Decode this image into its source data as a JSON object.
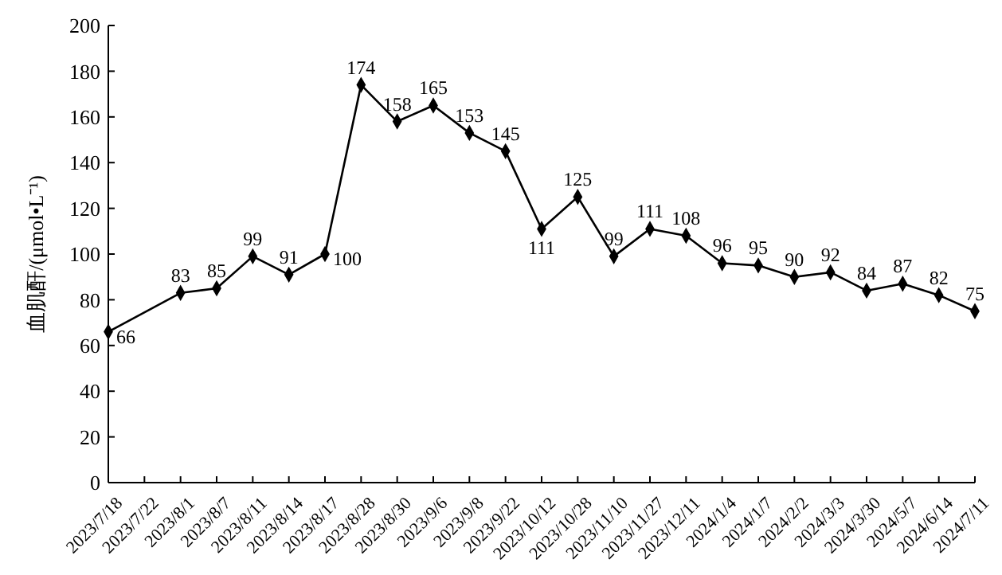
{
  "chart_data": {
    "type": "line",
    "ylabel": "血肌酐/(μmol•L⁻¹)",
    "categories": [
      "2023/7/18",
      "2023/7/22",
      "2023/8/1",
      "2023/8/7",
      "2023/8/11",
      "2023/8/14",
      "2023/8/17",
      "2023/8/28",
      "2023/8/30",
      "2023/9/6",
      "2023/9/8",
      "2023/9/22",
      "2023/10/12",
      "2023/10/28",
      "2023/11/10",
      "2023/11/27",
      "2023/12/11",
      "2024/1/4",
      "2024/1/7",
      "2024/2/2",
      "2024/3/3",
      "2024/3/30",
      "2024/5/7",
      "2024/6/14",
      "2024/7/11"
    ],
    "series": [
      {
        "color": "#000000",
        "values": [
          66,
          null,
          83,
          85,
          99,
          91,
          100,
          174,
          158,
          165,
          153,
          145,
          111,
          125,
          99,
          111,
          108,
          96,
          95,
          90,
          92,
          84,
          87,
          82,
          75
        ]
      }
    ],
    "ylim": [
      0,
      200
    ],
    "yticks": [
      0,
      20,
      40,
      60,
      80,
      100,
      120,
      140,
      160,
      180,
      200
    ],
    "marker": "diamond",
    "line_style": "solid",
    "data_labels": true
  }
}
